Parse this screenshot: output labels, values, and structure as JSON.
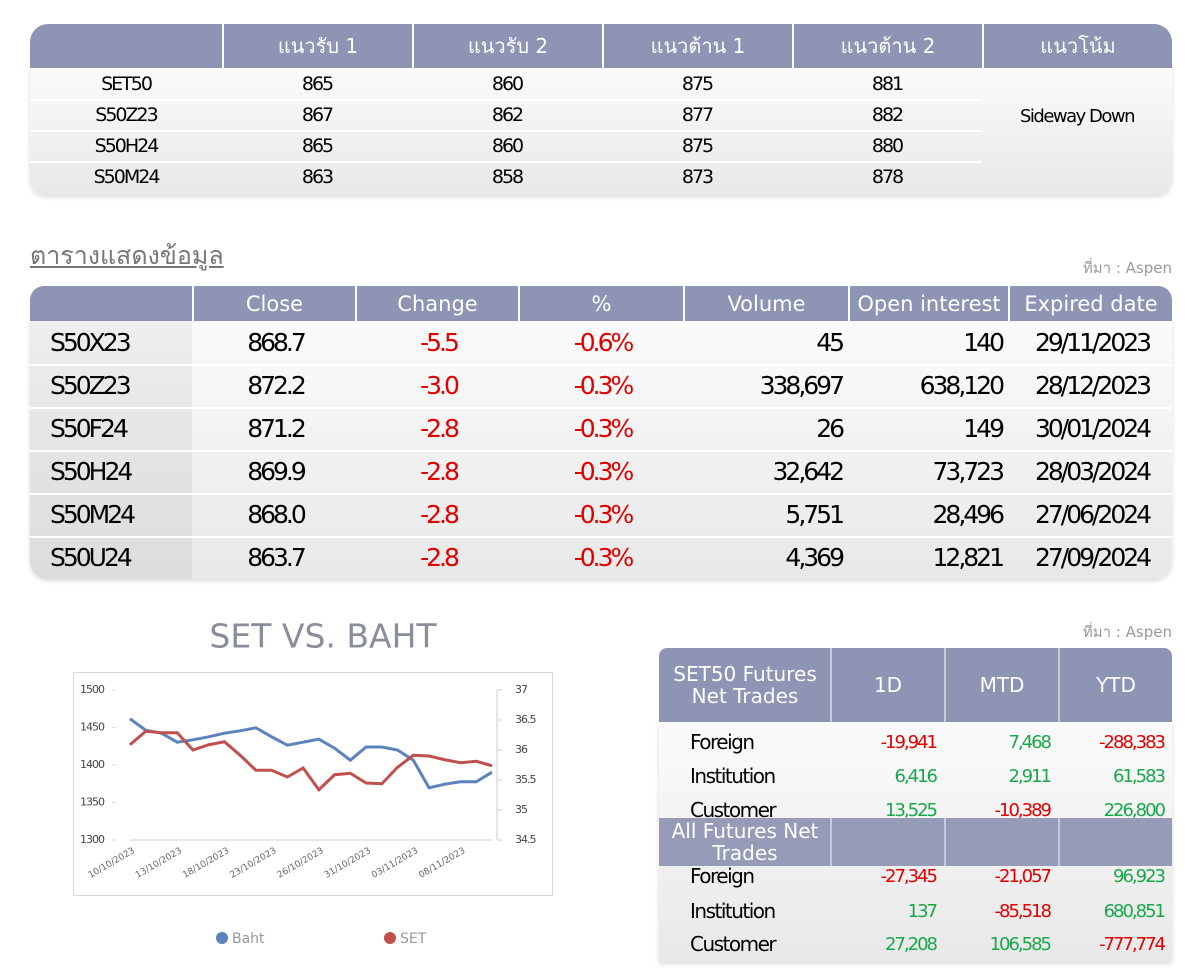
{
  "support_table": {
    "columns": [
      "แนวรับ 1",
      "แนวรับ 2",
      "แนวต้าน 1",
      "แนวต้าน 2",
      "แนวโน้ม"
    ],
    "rows": [
      {
        "symbol": "SET50",
        "values": [
          "865",
          "860",
          "875",
          "881"
        ]
      },
      {
        "symbol": "S50Z23",
        "values": [
          "867",
          "862",
          "877",
          "882"
        ]
      },
      {
        "symbol": "S50H24",
        "values": [
          "865",
          "860",
          "875",
          "880"
        ]
      },
      {
        "symbol": "S50M24",
        "values": [
          "863",
          "858",
          "873",
          "878"
        ]
      }
    ],
    "trend": "Sideway Down"
  },
  "data_section": {
    "title": "ตารางแสดงข้อมูล",
    "source": "ที่มา : Aspen"
  },
  "data_table": {
    "columns": [
      "Close",
      "Change",
      "%",
      "Volume",
      "Open interest",
      "Expired date"
    ],
    "rows": [
      {
        "symbol": "S50X23",
        "cells": [
          "868.7",
          "-5.5",
          "-0.6%",
          "45",
          "140",
          "29/11/2023"
        ]
      },
      {
        "symbol": "S50Z23",
        "cells": [
          "872.2",
          "-3.0",
          "-0.3%",
          "338,697",
          "638,120",
          "28/12/2023"
        ]
      },
      {
        "symbol": "S50F24",
        "cells": [
          "871.2",
          "-2.8",
          "-0.3%",
          "26",
          "149",
          "30/01/2024"
        ]
      },
      {
        "symbol": "S50H24",
        "cells": [
          "869.9",
          "-2.8",
          "-0.3%",
          "32,642",
          "73,723",
          "28/03/2024"
        ]
      },
      {
        "symbol": "S50M24",
        "cells": [
          "868.0",
          "-2.8",
          "-0.3%",
          "5,751",
          "28,496",
          "27/06/2024"
        ]
      },
      {
        "symbol": "S50U24",
        "cells": [
          "863.7",
          "-2.8",
          "-0.3%",
          "4,369",
          "12,821",
          "27/09/2024"
        ]
      }
    ]
  },
  "chart_data": {
    "type": "line",
    "title": "SET VS. BAHT",
    "categories": [
      "10/10/2023",
      null,
      null,
      "13/10/2023",
      null,
      null,
      "18/10/2023",
      null,
      null,
      "23/10/2023",
      null,
      null,
      "26/10/2023",
      null,
      null,
      "31/10/2023",
      null,
      null,
      "03/11/2023",
      null,
      null,
      "08/11/2023",
      null,
      null
    ],
    "series": [
      {
        "name": "Baht",
        "color": "#5b82bd",
        "axis": "y2",
        "values": [
          36.52,
          36.33,
          36.28,
          36.13,
          36.17,
          36.22,
          36.28,
          36.32,
          36.37,
          36.22,
          36.08,
          36.13,
          36.18,
          36.03,
          35.83,
          36.05,
          36.05,
          36.0,
          35.83,
          35.37,
          35.43,
          35.47,
          35.47,
          35.63
        ]
      },
      {
        "name": "SET",
        "color": "#c0504d",
        "values": [
          1427,
          1445,
          1443,
          1443,
          1420,
          1427,
          1431,
          1413,
          1393,
          1393,
          1384,
          1396,
          1367,
          1387,
          1389,
          1376,
          1375,
          1397,
          1413,
          1412,
          1407,
          1403,
          1405,
          1399
        ]
      }
    ],
    "ylim": [
      1300,
      1500
    ],
    "yticks": [
      1300,
      1350,
      1400,
      1450,
      1500
    ],
    "y2lim": [
      34.5,
      37
    ],
    "y2ticks": [
      34.5,
      35,
      35.5,
      36,
      36.5,
      37
    ],
    "legend": "bottom"
  },
  "net_trades": {
    "source": "ที่มา : Aspen",
    "columns": [
      "1D",
      "MTD",
      "YTD"
    ],
    "sections": [
      {
        "title": "SET50 Futures Net Trades",
        "rows": [
          {
            "name": "Foreign",
            "values": [
              "-19,941",
              "7,468",
              "-288,383"
            ]
          },
          {
            "name": "Institution",
            "values": [
              "6,416",
              "2,911",
              "61,583"
            ]
          },
          {
            "name": "Customer",
            "values": [
              "13,525",
              "-10,389",
              "226,800"
            ]
          }
        ]
      },
      {
        "title": "All Futures Net Trades",
        "rows": [
          {
            "name": "Foreign",
            "values": [
              "-27,345",
              "-21,057",
              "96,923"
            ]
          },
          {
            "name": "Institution",
            "values": [
              "137",
              "-85,518",
              "680,851"
            ]
          },
          {
            "name": "Customer",
            "values": [
              "27,208",
              "106,585",
              "-777,774"
            ]
          }
        ]
      }
    ]
  }
}
